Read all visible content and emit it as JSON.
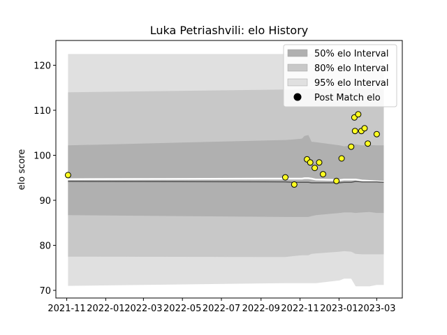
{
  "chart_data": {
    "type": "line",
    "title": "Luka Petriashvili: elo History",
    "xlabel": "",
    "ylabel": "elo score",
    "xlim": [
      "2021-10-15",
      "2023-04-10"
    ],
    "ylim": [
      68.3,
      125.5
    ],
    "x_ticks": [
      "2021-11",
      "2022-01",
      "2022-03",
      "2022-05",
      "2022-07",
      "2022-09",
      "2022-11",
      "2023-01",
      "2023-03"
    ],
    "y_ticks": [
      70,
      80,
      90,
      100,
      110,
      120
    ],
    "grid": false,
    "legend_position": "top-right",
    "legend": [
      {
        "label": "50% elo Interval",
        "kind": "patch",
        "color": "#b0b0b0"
      },
      {
        "label": "80% elo Interval",
        "kind": "patch",
        "color": "#c8c8c8"
      },
      {
        "label": "95% elo Interval",
        "kind": "patch",
        "color": "#e0e0e0"
      },
      {
        "label": "Post Match elo",
        "kind": "marker",
        "color": "#000000"
      }
    ],
    "colors": {
      "band50": "#b0b0b0",
      "band80": "#c8c8c8",
      "band95": "#e0e0e0",
      "mean_line": "#555555",
      "point_fill": "#ffff22",
      "point_edge": "#000000"
    },
    "intervals": {
      "x": [
        "2021-11-03",
        "2022-10-09",
        "2022-10-21",
        "2022-11-04",
        "2022-11-08",
        "2022-11-14",
        "2022-11-19",
        "2022-11-26",
        "2023-01-02",
        "2023-01-09",
        "2023-01-20",
        "2023-01-27",
        "2023-02-06",
        "2023-02-18",
        "2023-03-01",
        "2023-03-12"
      ],
      "p50_low": [
        86.7,
        86.3,
        86.3,
        86.3,
        86.3,
        86.3,
        86.5,
        86.7,
        87.2,
        87.3,
        87.3,
        87.2,
        87.3,
        87.4,
        87.2,
        87.2
      ],
      "p50_high": [
        102.2,
        103.4,
        103.5,
        103.7,
        104.3,
        104.5,
        103.0,
        102.9,
        102.2,
        102.0,
        102.2,
        102.4,
        102.2,
        102.3,
        102.2,
        102.2
      ],
      "p80_low": [
        77.5,
        77.4,
        77.6,
        77.8,
        77.8,
        77.8,
        78.1,
        78.2,
        78.6,
        78.7,
        78.6,
        78.1,
        78.0,
        78.0,
        78.0,
        78.0
      ],
      "p80_high": [
        114.0,
        114.6,
        114.6,
        114.8,
        114.8,
        114.8,
        114.8,
        114.8,
        114.8,
        114.8,
        114.8,
        114.8,
        114.8,
        114.8,
        114.8,
        114.8
      ],
      "p95_low": [
        71.0,
        71.6,
        71.6,
        71.6,
        71.6,
        71.6,
        71.6,
        71.6,
        72.2,
        72.6,
        72.6,
        70.9,
        70.9,
        70.9,
        71.2,
        71.2
      ],
      "p95_high": [
        122.5,
        122.5,
        122.5,
        122.5,
        122.5,
        122.5,
        122.5,
        122.5,
        122.5,
        122.5,
        122.5,
        122.5,
        122.5,
        122.5,
        122.5,
        122.5
      ],
      "mean": [
        94.2,
        94.1,
        94.0,
        94.0,
        94.0,
        94.0,
        93.9,
        93.9,
        93.9,
        94.0,
        94.0,
        94.2,
        94.1,
        94.1,
        94.1,
        94.0
      ],
      "mean_hi": [
        94.7,
        94.8,
        94.8,
        94.8,
        94.9,
        94.9,
        94.8,
        94.6,
        94.5,
        94.6,
        94.6,
        94.6,
        94.4,
        94.3,
        94.2,
        94.1
      ]
    },
    "points": {
      "x": [
        "2021-11-03",
        "2022-10-09",
        "2022-10-23",
        "2022-11-12",
        "2022-11-17",
        "2022-11-24",
        "2022-12-01",
        "2022-12-07",
        "2022-12-28",
        "2023-01-05",
        "2023-01-20",
        "2023-01-25",
        "2023-01-26",
        "2023-01-31",
        "2023-02-05",
        "2023-02-10",
        "2023-02-15",
        "2023-03-01"
      ],
      "y": [
        95.6,
        95.1,
        93.5,
        99.1,
        98.4,
        97.2,
        98.4,
        95.8,
        94.3,
        99.3,
        101.9,
        108.4,
        105.4,
        109.1,
        105.4,
        106.0,
        102.6,
        104.7
      ]
    }
  }
}
